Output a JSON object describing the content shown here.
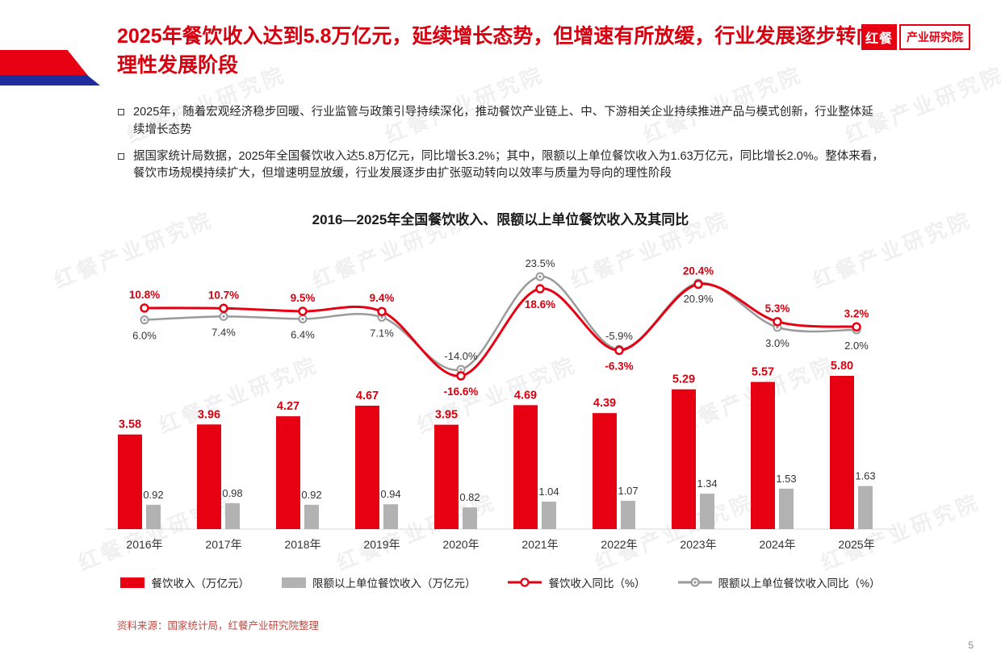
{
  "page": {
    "number": "5",
    "watermark": "红餐产业研究院"
  },
  "logo": {
    "brand": "红餐",
    "org": "产业研究院"
  },
  "header": {
    "title": "2025年餐饮收入达到5.8万亿元，延续增长态势，但增速有所放缓，行业发展逐步转向理性发展阶段"
  },
  "bullets": [
    "2025年，随着宏观经济稳步回暖、行业监管与政策引导持续深化，推动餐饮产业链上、中、下游相关企业持续推进产品与模式创新，行业整体延续增长态势",
    "据国家统计局数据，2025年全国餐饮收入达5.8万亿元，同比增长3.2%；其中，限额以上单位餐饮收入为1.63万亿元，同比增长2.0%。整体来看，餐饮市场规模持续扩大，但增速明显放缓，行业发展逐步由扩张驱动转向以效率与质量为导向的理性阶段"
  ],
  "colors": {
    "accent_red": "#E60012",
    "label_red": "#D7000F",
    "bar_gray": "#B2B2B2",
    "line_gray": "#9A9A9A",
    "navy": "#1F2C9C"
  },
  "chart_data": {
    "type": "combo",
    "title": "2016—2025年全国餐饮收入、限额以上单位餐饮收入及其同比",
    "categories": [
      "2016年",
      "2017年",
      "2018年",
      "2019年",
      "2020年",
      "2021年",
      "2022年",
      "2023年",
      "2024年",
      "2025年"
    ],
    "series": [
      {
        "name": "餐饮收入（万亿元）",
        "type": "bar",
        "color": "#E60012",
        "values": [
          3.58,
          3.96,
          4.27,
          4.67,
          3.95,
          4.69,
          4.39,
          5.29,
          5.57,
          5.8
        ]
      },
      {
        "name": "限额以上单位餐饮收入（万亿元）",
        "type": "bar",
        "color": "#B2B2B2",
        "values": [
          0.92,
          0.98,
          0.92,
          0.94,
          0.82,
          1.04,
          1.07,
          1.34,
          1.53,
          1.63
        ]
      },
      {
        "name": "餐饮收入同比（%）",
        "type": "line",
        "color": "#E60012",
        "values": [
          10.8,
          10.7,
          9.5,
          9.4,
          -16.6,
          18.6,
          -6.3,
          20.4,
          5.3,
          3.2
        ]
      },
      {
        "name": "限额以上单位餐饮收入同比（%）",
        "type": "line",
        "color": "#9A9A9A",
        "values": [
          6.0,
          7.4,
          6.4,
          7.1,
          -14.0,
          23.5,
          -5.9,
          20.9,
          3.0,
          2.0
        ]
      }
    ],
    "red_label_above": [
      true,
      true,
      true,
      true,
      false,
      false,
      false,
      true,
      true,
      true
    ],
    "grid": false,
    "legend_position": "bottom",
    "y_axis_visible": false
  },
  "footer": {
    "source": "资料来源：国家统计局，红餐产业研究院整理"
  }
}
